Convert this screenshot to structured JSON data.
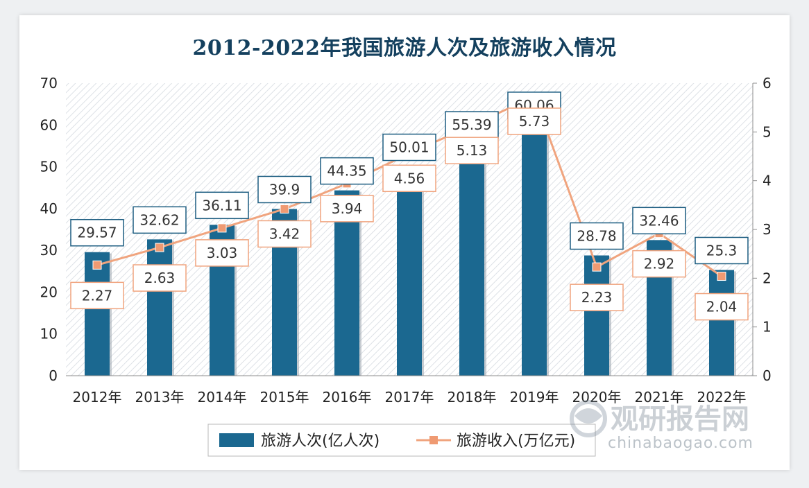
{
  "chart_data": {
    "type": "bar+line",
    "title": "2012-2022年我国旅游人次及旅游收入情况",
    "categories": [
      "2012年",
      "2013年",
      "2014年",
      "2015年",
      "2016年",
      "2017年",
      "2018年",
      "2019年",
      "2020年",
      "2021年",
      "2022年"
    ],
    "series": [
      {
        "name": "旅游人次(亿人次)",
        "type": "bar",
        "axis": "left",
        "values": [
          29.57,
          32.62,
          36.11,
          39.9,
          44.35,
          50.01,
          55.39,
          60.06,
          28.78,
          32.46,
          25.3
        ],
        "labels": [
          "29.57",
          "32.62",
          "36.11",
          "39.9",
          "44.35",
          "50.01",
          "55.39",
          "60.06",
          "28.78",
          "32.46",
          "25.3"
        ],
        "color": "#1b6890"
      },
      {
        "name": "旅游收入(万亿元)",
        "type": "line",
        "axis": "right",
        "values": [
          2.27,
          2.63,
          3.03,
          3.42,
          3.94,
          4.56,
          5.13,
          5.73,
          2.23,
          2.92,
          2.04
        ],
        "labels": [
          "2.27",
          "2.63",
          "3.03",
          "3.42",
          "3.94",
          "4.56",
          "5.13",
          "5.73",
          "2.23",
          "2.92",
          "2.04"
        ],
        "color": "#f0a47e"
      }
    ],
    "y_left": {
      "min": 0,
      "max": 70,
      "ticks": [
        "0",
        "10",
        "20",
        "30",
        "40",
        "50",
        "60",
        "70"
      ]
    },
    "y_right": {
      "min": 0,
      "max": 6,
      "ticks": [
        "0",
        "1",
        "2",
        "3",
        "4",
        "5",
        "6"
      ]
    },
    "legend_position": "bottom"
  },
  "watermark": {
    "cn": "观研报告网",
    "en": "chinabaogao.com"
  }
}
